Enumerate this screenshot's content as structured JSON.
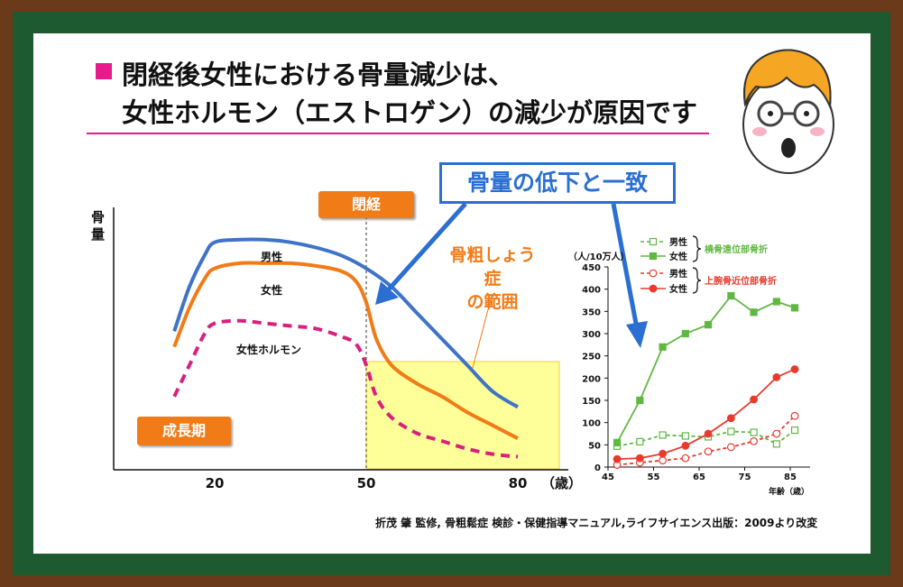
{
  "title": {
    "line1": "閉経後女性における骨量減少は、",
    "line2": "女性ホルモン（エストロゲン）の減少が原因です"
  },
  "callout": "骨量の低下と一致",
  "left_chart": {
    "ylabel": "骨量",
    "xticks": [
      "20",
      "50",
      "80"
    ],
    "xunit": "（歳）",
    "menopause_label": "閉経",
    "growth_label": "成長期",
    "osteo_label_line1": "骨粗しょう症",
    "osteo_label_line2": "の範囲",
    "series_labels": {
      "male": "男性",
      "female": "女性",
      "hormone": "女性ホルモン"
    }
  },
  "source": "折茂 肇 監修, 骨粗鬆症 検診・保健指導マニュアル,ライフサイエンス出版：2009より改変",
  "colors": {
    "male": "#3f73c6",
    "female": "#f07b17",
    "hormone": "#d9207e",
    "green": "#5fb840",
    "red": "#e83a2d",
    "highlight": "#ffff99",
    "accent": "#e8198b",
    "board": "#1e5a30",
    "frame": "#6b3a1a"
  },
  "chart_data": [
    {
      "type": "line",
      "xticks": [
        20,
        50,
        80
      ],
      "xunit": "（歳）",
      "ylabel": "骨量",
      "series": [
        {
          "name": "男性",
          "x": [
            12,
            15,
            18,
            20,
            25,
            30,
            35,
            40,
            45,
            50,
            55,
            60,
            65,
            70,
            75,
            80
          ],
          "y": [
            53,
            70,
            82,
            87,
            88,
            88,
            87,
            85,
            82,
            77,
            70,
            60,
            50,
            40,
            30,
            24
          ]
        },
        {
          "name": "女性",
          "x": [
            12,
            15,
            18,
            20,
            25,
            30,
            35,
            40,
            45,
            48,
            50,
            52,
            55,
            60,
            65,
            70,
            75,
            80
          ],
          "y": [
            47,
            62,
            73,
            77,
            79,
            79,
            79,
            78,
            76,
            72,
            64,
            50,
            40,
            33,
            28,
            22,
            17,
            12
          ]
        },
        {
          "name": "女性ホルモン",
          "x": [
            12,
            15,
            18,
            20,
            25,
            30,
            35,
            40,
            45,
            48,
            50,
            52,
            55,
            60,
            65,
            70,
            75,
            80
          ],
          "y": [
            28,
            40,
            52,
            56,
            57,
            56,
            55,
            54,
            51,
            48,
            40,
            28,
            20,
            14,
            11,
            8,
            6,
            5
          ]
        }
      ]
    },
    {
      "type": "line",
      "ylabel": "（人/10万人）",
      "xlabel": "年齢（歳）",
      "xticks": [
        45,
        55,
        65,
        75,
        85
      ],
      "yticks": [
        0,
        50,
        100,
        150,
        200,
        250,
        300,
        350,
        400,
        450
      ],
      "ylim": [
        0,
        450
      ],
      "groups": [
        "橈骨遠位部骨折",
        "上腕骨近位部骨折"
      ],
      "series": [
        {
          "name": "男性",
          "group": "橈骨遠位部骨折",
          "x": [
            47,
            52,
            57,
            62,
            67,
            72,
            77,
            82,
            86
          ],
          "y": [
            47,
            57,
            72,
            70,
            68,
            80,
            78,
            52,
            83
          ]
        },
        {
          "name": "女性",
          "group": "橈骨遠位部骨折",
          "x": [
            47,
            52,
            57,
            62,
            67,
            72,
            77,
            82,
            86
          ],
          "y": [
            55,
            150,
            270,
            300,
            320,
            385,
            348,
            372,
            358
          ]
        },
        {
          "name": "男性",
          "group": "上腕骨近位部骨折",
          "x": [
            47,
            52,
            57,
            62,
            67,
            72,
            77,
            82,
            86
          ],
          "y": [
            5,
            10,
            15,
            20,
            35,
            45,
            58,
            75,
            115
          ]
        },
        {
          "name": "女性",
          "group": "上腕骨近位部骨折",
          "x": [
            47,
            52,
            57,
            62,
            67,
            72,
            77,
            82,
            86
          ],
          "y": [
            18,
            20,
            30,
            48,
            75,
            110,
            152,
            202,
            220
          ]
        }
      ]
    }
  ]
}
